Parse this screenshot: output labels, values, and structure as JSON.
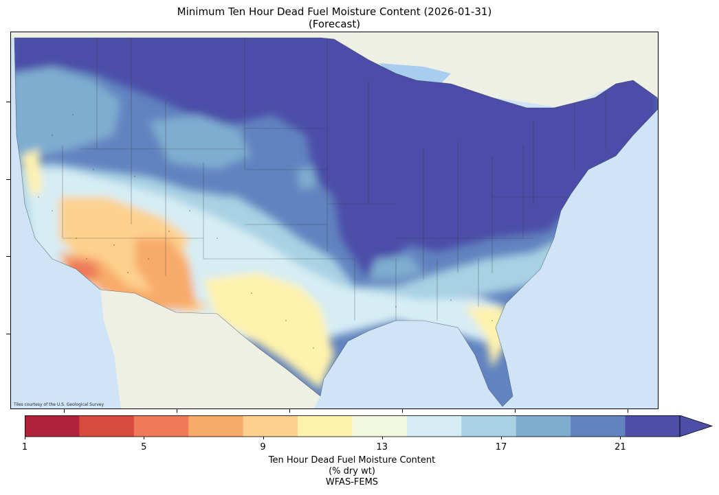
{
  "title_line1": "Minimum Ten Hour Dead Fuel Moisture Content (2026-01-31)",
  "title_line2": "(Forecast)",
  "attribution": "Tiles courtesy of the U.S. Geological Survey",
  "colorbar": {
    "label_line1": "Ten Hour Dead Fuel Moisture Content",
    "label_line2": "(% dry wt)",
    "label_line3": "WFAS-FEMS",
    "ticks": [
      "1",
      "5",
      "9",
      "13",
      "17",
      "21"
    ],
    "bins": [
      1,
      3,
      5,
      7,
      9,
      11,
      13,
      15,
      17,
      19,
      21,
      23
    ],
    "colors": [
      "#b2213a",
      "#d94a3e",
      "#ee7a59",
      "#f8aa6a",
      "#fdd18d",
      "#fff2ad",
      "#f2f9de",
      "#d6edf4",
      "#a8d1e3",
      "#7fadd0",
      "#6183bf",
      "#4c4ea8"
    ],
    "extend": "max"
  },
  "map_colors": {
    "ocean": "#cfe4f7",
    "land": "#eef0e6",
    "lake": "#a9cdef"
  }
}
